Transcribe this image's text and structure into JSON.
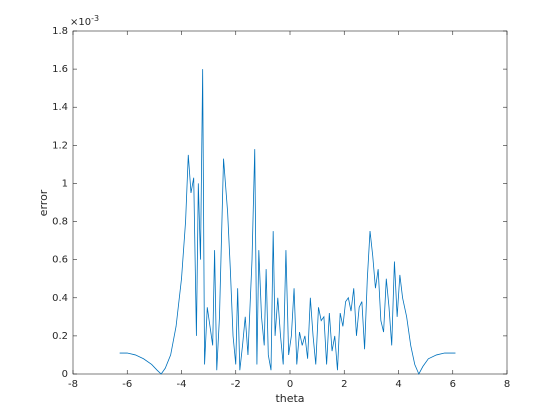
{
  "chart_data": {
    "type": "line",
    "x_label": "theta",
    "y_label": "error",
    "y_multiplier": {
      "base": "×10",
      "exponent": "-3"
    },
    "xlim": [
      -8,
      8
    ],
    "xticks": [
      -8,
      -6,
      -4,
      -2,
      0,
      2,
      4,
      6,
      8
    ],
    "ylim": [
      0,
      1.8
    ],
    "yticks": [
      0,
      0.2,
      0.4,
      0.6,
      0.8,
      1,
      1.2,
      1.4,
      1.6,
      1.8
    ],
    "grid": false,
    "box": true,
    "series": [
      {
        "color": "#0072bd",
        "x": [
          -6.28,
          -6.0,
          -5.7,
          -5.4,
          -5.1,
          -4.9,
          -4.75,
          -4.6,
          -4.4,
          -4.2,
          -4.0,
          -3.85,
          -3.75,
          -3.65,
          -3.55,
          -3.45,
          -3.38,
          -3.3,
          -3.22,
          -3.15,
          -3.05,
          -2.95,
          -2.85,
          -2.78,
          -2.7,
          -2.6,
          -2.45,
          -2.3,
          -2.2,
          -2.1,
          -2.0,
          -1.93,
          -1.85,
          -1.75,
          -1.65,
          -1.55,
          -1.4,
          -1.3,
          -1.22,
          -1.15,
          -1.05,
          -0.95,
          -0.88,
          -0.8,
          -0.7,
          -0.62,
          -0.55,
          -0.45,
          -0.35,
          -0.25,
          -0.15,
          -0.05,
          0.05,
          0.15,
          0.25,
          0.35,
          0.45,
          0.55,
          0.65,
          0.75,
          0.85,
          0.95,
          1.05,
          1.15,
          1.25,
          1.35,
          1.45,
          1.55,
          1.65,
          1.75,
          1.85,
          1.95,
          2.05,
          2.15,
          2.25,
          2.35,
          2.45,
          2.55,
          2.65,
          2.75,
          2.85,
          2.95,
          3.05,
          3.15,
          3.25,
          3.35,
          3.45,
          3.55,
          3.65,
          3.75,
          3.85,
          3.95,
          4.05,
          4.15,
          4.3,
          4.45,
          4.6,
          4.75,
          4.9,
          5.1,
          5.4,
          5.7,
          6.1
        ],
        "values": [
          0.11,
          0.11,
          0.1,
          0.08,
          0.05,
          0.02,
          0.0,
          0.03,
          0.1,
          0.25,
          0.5,
          0.8,
          1.15,
          0.95,
          1.03,
          0.2,
          1.0,
          0.6,
          1.6,
          0.05,
          0.35,
          0.25,
          0.15,
          0.65,
          0.02,
          0.3,
          1.13,
          0.85,
          0.55,
          0.2,
          0.05,
          0.45,
          0.02,
          0.15,
          0.3,
          0.1,
          0.6,
          1.18,
          0.05,
          0.65,
          0.3,
          0.15,
          0.55,
          0.1,
          0.02,
          0.75,
          0.2,
          0.4,
          0.2,
          0.05,
          0.65,
          0.1,
          0.2,
          0.45,
          0.05,
          0.22,
          0.15,
          0.2,
          0.08,
          0.4,
          0.2,
          0.05,
          0.35,
          0.28,
          0.3,
          0.05,
          0.32,
          0.12,
          0.2,
          0.02,
          0.32,
          0.25,
          0.38,
          0.4,
          0.33,
          0.45,
          0.2,
          0.35,
          0.38,
          0.13,
          0.5,
          0.75,
          0.62,
          0.45,
          0.55,
          0.28,
          0.22,
          0.5,
          0.35,
          0.15,
          0.59,
          0.3,
          0.52,
          0.4,
          0.3,
          0.15,
          0.05,
          0.0,
          0.04,
          0.08,
          0.1,
          0.11,
          0.11
        ]
      }
    ]
  }
}
